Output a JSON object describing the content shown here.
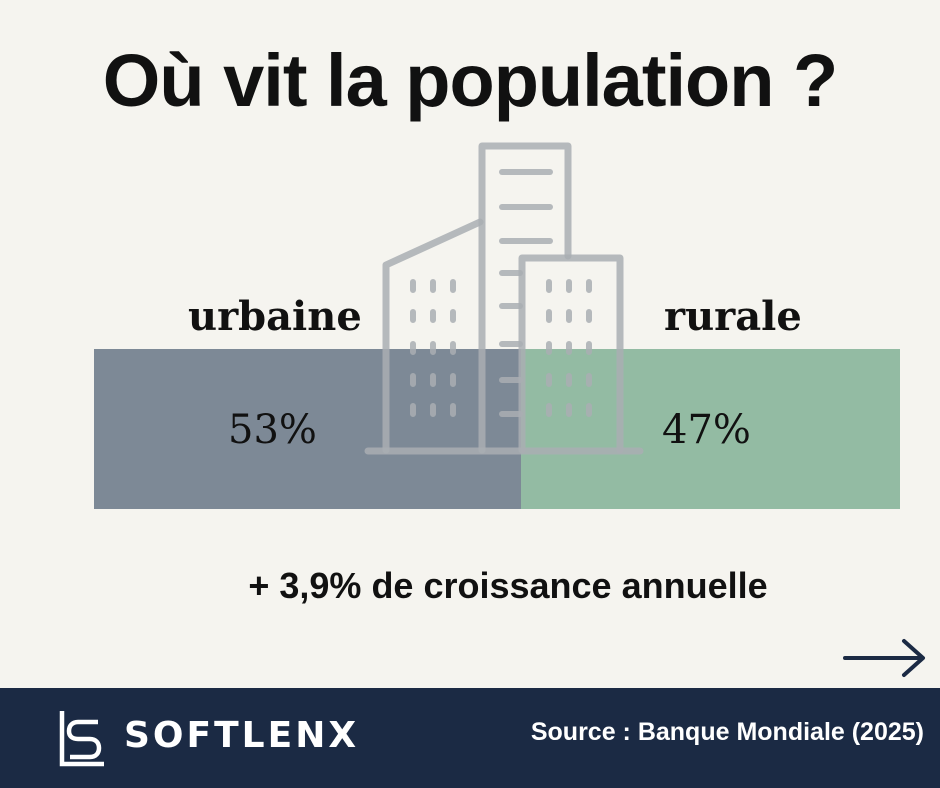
{
  "title": "Où vit la population ?",
  "chart_data": {
    "type": "bar",
    "orientation": "stacked-horizontal",
    "categories": [
      "urbaine",
      "rurale"
    ],
    "values": [
      53,
      47
    ],
    "value_labels": [
      "53%",
      "47%"
    ],
    "unit": "%",
    "colors": [
      "#7d8996",
      "#93bba3"
    ]
  },
  "labels": {
    "urban": "urbaine",
    "rural": "rurale",
    "urban_pct": "53%",
    "rural_pct": "47%"
  },
  "growth_text": "+ 3,9% de croissance annuelle",
  "icons": {
    "illustration": "building-icon",
    "next": "arrow-right-icon",
    "logo": "softlenx-logo-icon"
  },
  "footer": {
    "brand": "SOFTLENX",
    "source": "Source : Banque Mondiale (2025)"
  },
  "colors": {
    "background": "#f5f4ef",
    "footer": "#1b2a44",
    "urban": "#7d8996",
    "rural": "#93bba3",
    "building_stroke": "#a9aeb3"
  }
}
